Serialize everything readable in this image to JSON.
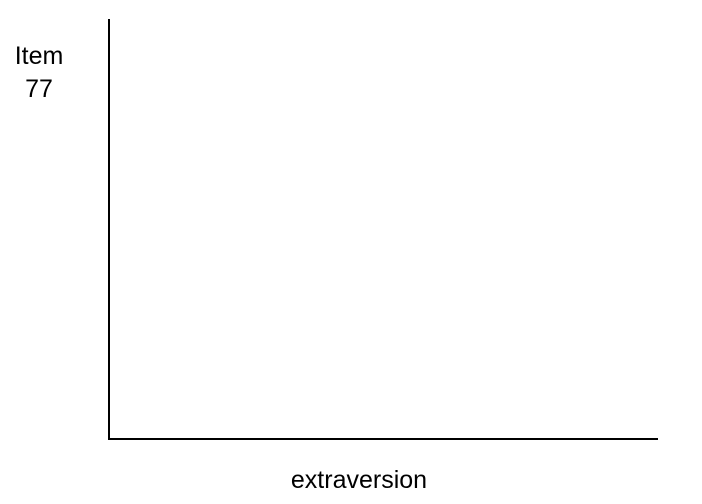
{
  "chart_data": {
    "type": "line",
    "title": "",
    "ylabel_lines": [
      "Item",
      "77"
    ],
    "xlabel": "extraversion",
    "series": [],
    "grid": false,
    "legend": "none"
  },
  "colors": {
    "axis": "#000000",
    "background": "#ffffff"
  }
}
